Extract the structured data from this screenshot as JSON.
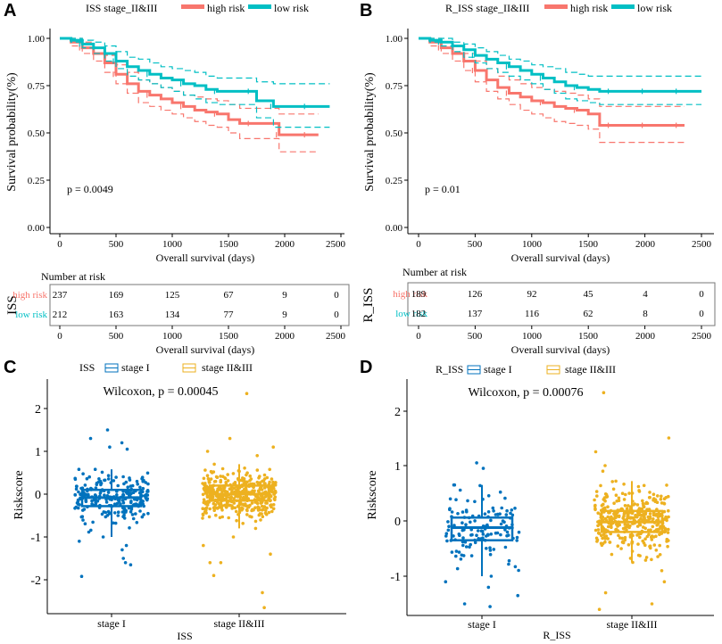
{
  "colors": {
    "high": "#F8766D",
    "low": "#00BFC4",
    "stage1": "#0072BD",
    "stage2": "#EDB120",
    "axis": "#000000",
    "frame": "#555555"
  },
  "km_panels": [
    {
      "letter": "A",
      "legend_title": "ISS stage_II&III",
      "legend_high": "high risk",
      "legend_low": "low risk",
      "ylabel": "Survival probability(%)",
      "xlabel": "Overall survival (days)",
      "pvalue": "p = 0.0049",
      "yticks": [
        "0.00",
        "0.25",
        "0.50",
        "0.75",
        "1.00"
      ],
      "xticks": [
        "0",
        "500",
        "1000",
        "1500",
        "2000",
        "2500"
      ],
      "risk_title": "Number at risk",
      "risk_axis": "ISS",
      "risk_labels": [
        "high risk",
        "low risk"
      ],
      "risk_high": [
        "237",
        "169",
        "125",
        "67",
        "9",
        "0"
      ],
      "risk_low": [
        "212",
        "163",
        "134",
        "77",
        "9",
        "0"
      ]
    },
    {
      "letter": "B",
      "legend_title": "R_ISS stage_II&III",
      "legend_high": "high risk",
      "legend_low": "low risk",
      "ylabel": "Survival probability(%)",
      "xlabel": "Overall survival (days)",
      "pvalue": "p = 0.01",
      "yticks": [
        "0.00",
        "0.25",
        "0.50",
        "0.75",
        "1.00"
      ],
      "xticks": [
        "0",
        "500",
        "1000",
        "1500",
        "2000",
        "2500"
      ],
      "risk_title": "Number at risk",
      "risk_axis": "R_ISS",
      "risk_labels": [
        "high risk",
        "low risk"
      ],
      "risk_high": [
        "189",
        "126",
        "92",
        "45",
        "4",
        "0"
      ],
      "risk_low": [
        "182",
        "137",
        "116",
        "62",
        "8",
        "0"
      ]
    }
  ],
  "box_panels": [
    {
      "letter": "C",
      "legend_title": "ISS",
      "legend_items": [
        "stage I",
        "stage II&III"
      ],
      "title": "Wilcoxon, p = 0.00045",
      "ylabel": "Riskscore",
      "xlabel": "ISS",
      "yticks": [
        "-2",
        "-1",
        "0",
        "1",
        "2"
      ],
      "categories": [
        "stage I",
        "stage II&III"
      ]
    },
    {
      "letter": "D",
      "legend_title": "R_ISS",
      "legend_items": [
        "stage I",
        "stage II&III"
      ],
      "title": "Wilcoxon, p = 0.00076",
      "ylabel": "Riskscore",
      "xlabel": "R_ISS",
      "yticks": [
        "-1",
        "0",
        "1",
        "2"
      ],
      "categories": [
        "stage I",
        "stage II&III"
      ]
    }
  ],
  "chart_data": [
    {
      "type": "line",
      "title": "ISS stage_II&III",
      "xlabel": "Overall survival (days)",
      "ylabel": "Survival probability(%)",
      "xlim": [
        0,
        2500
      ],
      "ylim": [
        0,
        1
      ],
      "annotation": "p = 0.0049",
      "series": [
        {
          "name": "high risk",
          "x": [
            0,
            100,
            200,
            300,
            400,
            500,
            600,
            700,
            800,
            900,
            1000,
            1100,
            1200,
            1300,
            1400,
            1500,
            1600,
            1700,
            1800,
            1900,
            1950,
            2000,
            2100,
            2200,
            2300
          ],
          "y": [
            1.0,
            0.98,
            0.95,
            0.92,
            0.87,
            0.81,
            0.76,
            0.72,
            0.7,
            0.68,
            0.66,
            0.64,
            0.62,
            0.61,
            0.6,
            0.57,
            0.55,
            0.55,
            0.55,
            0.55,
            0.49,
            0.49,
            0.49,
            0.49,
            0.49
          ],
          "ci_upper": [
            1.0,
            1.0,
            0.98,
            0.95,
            0.91,
            0.86,
            0.82,
            0.78,
            0.76,
            0.74,
            0.72,
            0.7,
            0.69,
            0.68,
            0.67,
            0.65,
            0.63,
            0.63,
            0.63,
            0.63,
            0.6,
            0.6,
            0.6,
            0.6,
            0.6
          ],
          "ci_lower": [
            1.0,
            0.96,
            0.92,
            0.88,
            0.82,
            0.76,
            0.71,
            0.66,
            0.64,
            0.62,
            0.6,
            0.58,
            0.56,
            0.54,
            0.53,
            0.5,
            0.47,
            0.47,
            0.47,
            0.47,
            0.4,
            0.4,
            0.4,
            0.4,
            0.4
          ]
        },
        {
          "name": "low risk",
          "x": [
            0,
            100,
            200,
            300,
            400,
            500,
            600,
            700,
            800,
            900,
            1000,
            1100,
            1200,
            1300,
            1400,
            1500,
            1600,
            1700,
            1750,
            1800,
            1900,
            2000,
            2100,
            2200,
            2300,
            2400
          ],
          "y": [
            1.0,
            0.99,
            0.97,
            0.95,
            0.92,
            0.88,
            0.85,
            0.83,
            0.81,
            0.79,
            0.78,
            0.76,
            0.75,
            0.73,
            0.72,
            0.72,
            0.72,
            0.72,
            0.67,
            0.67,
            0.64,
            0.64,
            0.64,
            0.64,
            0.64,
            0.64
          ],
          "ci_upper": [
            1.0,
            1.0,
            0.99,
            0.98,
            0.96,
            0.93,
            0.9,
            0.89,
            0.87,
            0.85,
            0.84,
            0.83,
            0.82,
            0.8,
            0.79,
            0.79,
            0.79,
            0.79,
            0.77,
            0.77,
            0.76,
            0.76,
            0.76,
            0.76,
            0.76,
            0.76
          ],
          "ci_lower": [
            1.0,
            0.98,
            0.95,
            0.92,
            0.88,
            0.84,
            0.8,
            0.78,
            0.76,
            0.74,
            0.72,
            0.7,
            0.68,
            0.66,
            0.65,
            0.65,
            0.65,
            0.65,
            0.58,
            0.58,
            0.53,
            0.53,
            0.53,
            0.53,
            0.53,
            0.53
          ]
        }
      ],
      "risk_table": {
        "times": [
          0,
          500,
          1000,
          1500,
          2000,
          2500
        ],
        "high risk": [
          237,
          169,
          125,
          67,
          9,
          0
        ],
        "low risk": [
          212,
          163,
          134,
          77,
          9,
          0
        ]
      }
    },
    {
      "type": "line",
      "title": "R_ISS stage_II&III",
      "xlabel": "Overall survival (days)",
      "ylabel": "Survival probability(%)",
      "xlim": [
        0,
        2500
      ],
      "ylim": [
        0,
        1
      ],
      "annotation": "p = 0.01",
      "series": [
        {
          "name": "high risk",
          "x": [
            0,
            100,
            200,
            300,
            400,
            500,
            600,
            700,
            800,
            900,
            1000,
            1100,
            1200,
            1300,
            1400,
            1500,
            1600,
            1700,
            1800,
            1900,
            2000,
            2100,
            2200,
            2300,
            2350
          ],
          "y": [
            1.0,
            0.98,
            0.95,
            0.92,
            0.88,
            0.83,
            0.78,
            0.74,
            0.71,
            0.69,
            0.67,
            0.66,
            0.64,
            0.63,
            0.62,
            0.6,
            0.54,
            0.54,
            0.54,
            0.54,
            0.54,
            0.54,
            0.54,
            0.54,
            0.54
          ],
          "ci_upper": [
            1.0,
            1.0,
            0.98,
            0.96,
            0.92,
            0.88,
            0.84,
            0.8,
            0.78,
            0.76,
            0.74,
            0.73,
            0.72,
            0.71,
            0.7,
            0.68,
            0.64,
            0.64,
            0.64,
            0.64,
            0.64,
            0.64,
            0.64,
            0.64,
            0.64
          ],
          "ci_lower": [
            1.0,
            0.96,
            0.92,
            0.88,
            0.83,
            0.77,
            0.72,
            0.68,
            0.65,
            0.62,
            0.6,
            0.58,
            0.56,
            0.55,
            0.54,
            0.52,
            0.45,
            0.45,
            0.45,
            0.45,
            0.45,
            0.45,
            0.45,
            0.45,
            0.45
          ]
        },
        {
          "name": "low risk",
          "x": [
            0,
            100,
            200,
            300,
            400,
            500,
            600,
            700,
            800,
            900,
            1000,
            1100,
            1200,
            1300,
            1400,
            1500,
            1600,
            1700,
            1800,
            1900,
            2000,
            2100,
            2200,
            2300,
            2400,
            2500
          ],
          "y": [
            1.0,
            0.99,
            0.98,
            0.96,
            0.94,
            0.91,
            0.89,
            0.87,
            0.85,
            0.83,
            0.81,
            0.79,
            0.77,
            0.75,
            0.74,
            0.73,
            0.72,
            0.72,
            0.72,
            0.72,
            0.72,
            0.72,
            0.72,
            0.72,
            0.72,
            0.72
          ],
          "ci_upper": [
            1.0,
            1.0,
            1.0,
            0.98,
            0.97,
            0.95,
            0.93,
            0.91,
            0.89,
            0.88,
            0.86,
            0.85,
            0.84,
            0.82,
            0.81,
            0.8,
            0.8,
            0.8,
            0.8,
            0.8,
            0.8,
            0.8,
            0.8,
            0.8,
            0.8,
            0.8
          ],
          "ci_lower": [
            1.0,
            0.98,
            0.96,
            0.93,
            0.9,
            0.87,
            0.84,
            0.82,
            0.8,
            0.78,
            0.76,
            0.73,
            0.71,
            0.68,
            0.67,
            0.66,
            0.65,
            0.65,
            0.65,
            0.65,
            0.65,
            0.65,
            0.65,
            0.65,
            0.65,
            0.65
          ]
        }
      ],
      "risk_table": {
        "times": [
          0,
          500,
          1000,
          1500,
          2000,
          2500
        ],
        "high risk": [
          189,
          126,
          92,
          45,
          4,
          0
        ],
        "low risk": [
          182,
          137,
          116,
          62,
          8,
          0
        ]
      }
    },
    {
      "type": "box",
      "title": "Wilcoxon, p = 0.00045",
      "xlabel": "ISS",
      "ylabel": "Riskscore",
      "ylim": [
        -2.75,
        2.5
      ],
      "categories": [
        "stage I",
        "stage II&III"
      ],
      "series": [
        {
          "name": "stage I",
          "whisker_low": -1.0,
          "q1": -0.28,
          "median": -0.08,
          "q3": 0.1,
          "whisker_high": 0.58,
          "outliers": [
            1.5,
            1.3,
            1.2,
            1.1,
            1.05,
            -1.1,
            -1.2,
            -1.3,
            -1.5,
            -1.6,
            -1.65,
            -1.92
          ],
          "n": 237
        },
        {
          "name": "stage II&III",
          "whisker_low": -0.8,
          "q1": -0.15,
          "median": 0.0,
          "q3": 0.2,
          "whisker_high": 0.7,
          "outliers": [
            2.35,
            1.3,
            1.1,
            1.0,
            0.9,
            -1.0,
            -1.2,
            -1.4,
            -1.6,
            -1.6,
            -1.9,
            -2.3,
            -2.65
          ],
          "n": 449
        }
      ]
    },
    {
      "type": "box",
      "title": "Wilcoxon, p = 0.00076",
      "xlabel": "R_ISS",
      "ylabel": "Riskscore",
      "ylim": [
        -1.75,
        2.5
      ],
      "categories": [
        "stage I",
        "stage II&III"
      ],
      "series": [
        {
          "name": "stage I",
          "whisker_low": -1.0,
          "q1": -0.35,
          "median": -0.12,
          "q3": 0.06,
          "whisker_high": 0.65,
          "outliers": [
            1.05,
            0.95,
            -1.1,
            -1.2,
            -1.35,
            -1.5,
            -1.55
          ],
          "n": 130
        },
        {
          "name": "stage II&III",
          "whisker_low": -0.75,
          "q1": -0.2,
          "median": -0.02,
          "q3": 0.18,
          "whisker_high": 0.72,
          "outliers": [
            2.32,
            1.5,
            1.25,
            1.0,
            0.9,
            -0.9,
            -1.1,
            -1.3,
            -1.5,
            -1.6
          ],
          "n": 371
        }
      ]
    }
  ]
}
